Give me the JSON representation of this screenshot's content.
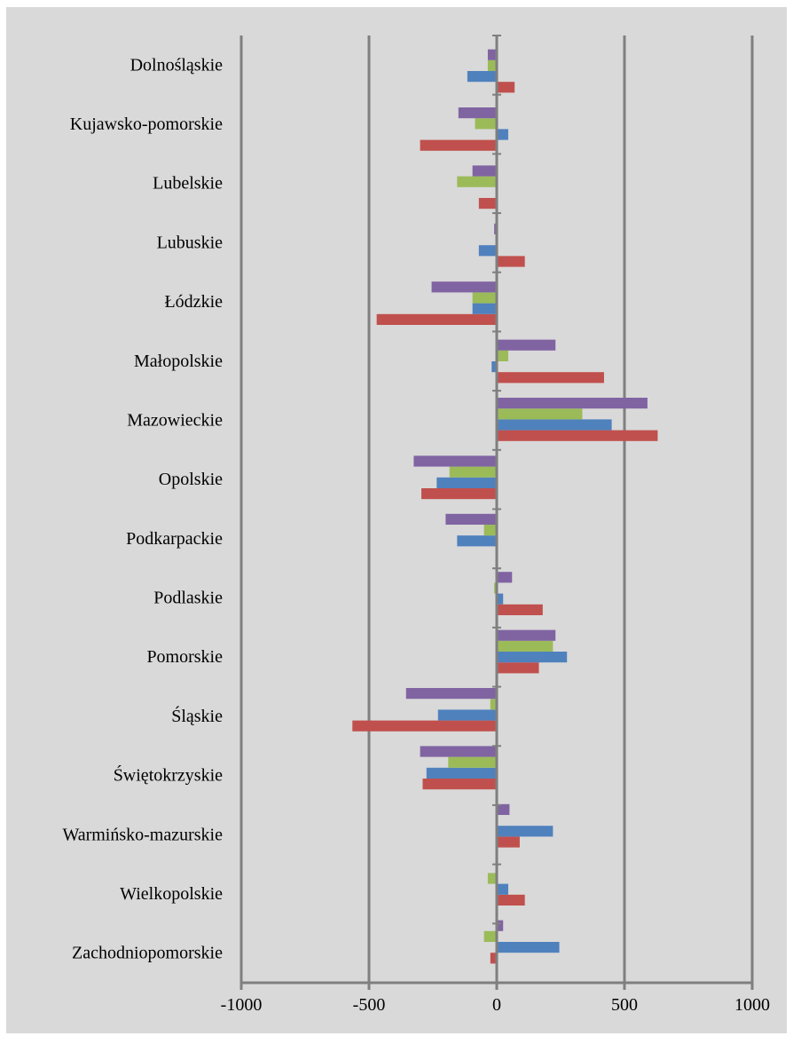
{
  "chart_data": {
    "type": "bar",
    "orientation": "horizontal",
    "title": "",
    "xlabel": "",
    "ylabel": "",
    "xlim": [
      -1000,
      1000
    ],
    "x_ticks": [
      "-1000",
      "-500",
      "0",
      "500",
      "1000"
    ],
    "gridlines": "vertical",
    "legend": "none",
    "categories": [
      "Dolnośląskie",
      "Kujawsko-pomorskie",
      "Lubelskie",
      "Lubuskie",
      "Łódzkie",
      "Małopolskie",
      "Mazowieckie",
      "Opolskie",
      "Podkarpackie",
      "Podlaskie",
      "Pomorskie",
      "Śląskie",
      "Świętokrzyskie",
      "Warmińsko-mazurskie",
      "Wielkopolskie",
      "Zachodniopomorskie"
    ],
    "series": [
      {
        "color": "#C0504D",
        "values": [
          70,
          -300,
          -70,
          110,
          -470,
          420,
          630,
          -295,
          0,
          180,
          165,
          -565,
          -290,
          90,
          110,
          -25
        ]
      },
      {
        "color": "#4F81BD",
        "values": [
          -115,
          45,
          5,
          -70,
          -95,
          -20,
          450,
          -235,
          -155,
          25,
          275,
          -230,
          -275,
          220,
          45,
          245
        ]
      },
      {
        "color": "#9BBB59",
        "values": [
          -35,
          -85,
          -155,
          0,
          -95,
          45,
          335,
          -185,
          -50,
          -10,
          220,
          -25,
          -190,
          0,
          -35,
          -50
        ]
      },
      {
        "color": "#8064A2",
        "values": [
          -35,
          -150,
          -95,
          -10,
          -255,
          230,
          590,
          -325,
          -200,
          60,
          230,
          -355,
          -300,
          50,
          -5,
          25
        ]
      }
    ]
  },
  "style": {
    "background": "#D9D9D9",
    "axis_color": "#7F7F7F"
  }
}
